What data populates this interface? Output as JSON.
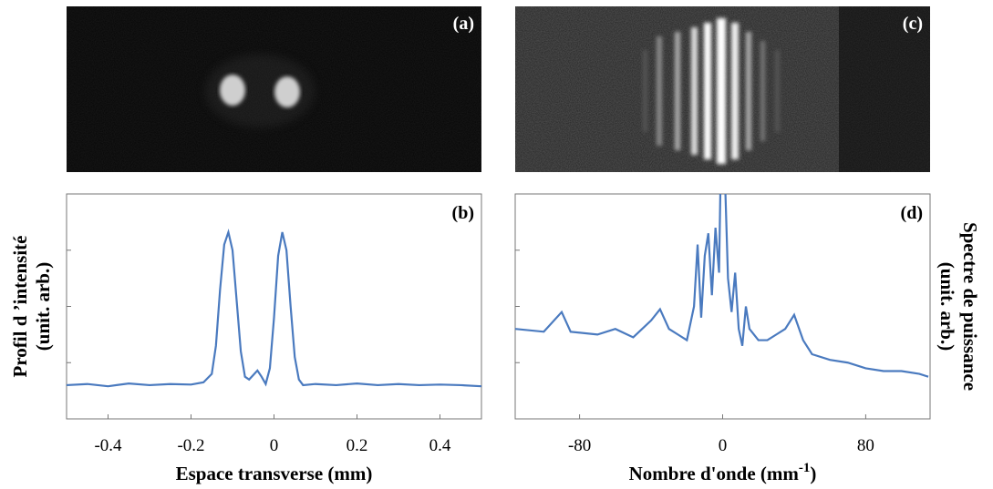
{
  "images": [
    {
      "label": "(a)"
    },
    {
      "label": "(c)"
    }
  ],
  "chart_data": [
    {
      "type": "line",
      "panel_label": "(b)",
      "xlabel": "Espace transverse (mm)",
      "ylabel": [
        "Profil d ’intensité",
        "(unit. arb.)"
      ],
      "ylabel_side": "left",
      "color": "#4a7abf",
      "xlim": [
        -0.5,
        0.5
      ],
      "xticks": [
        -0.4,
        -0.2,
        0,
        0.2,
        0.4
      ],
      "ylim": [
        0,
        4
      ],
      "yticks": [
        0,
        1,
        2,
        3,
        4
      ],
      "x": [
        -0.5,
        -0.45,
        -0.4,
        -0.35,
        -0.3,
        -0.25,
        -0.2,
        -0.17,
        -0.15,
        -0.14,
        -0.13,
        -0.12,
        -0.11,
        -0.1,
        -0.09,
        -0.08,
        -0.07,
        -0.06,
        -0.05,
        -0.04,
        -0.03,
        -0.02,
        -0.01,
        0,
        0.01,
        0.02,
        0.03,
        0.04,
        0.05,
        0.06,
        0.07,
        0.1,
        0.15,
        0.2,
        0.25,
        0.3,
        0.35,
        0.4,
        0.45,
        0.5
      ],
      "values": [
        0.6,
        0.62,
        0.58,
        0.63,
        0.6,
        0.62,
        0.61,
        0.65,
        0.8,
        1.3,
        2.3,
        3.1,
        3.32,
        3.0,
        2.1,
        1.2,
        0.75,
        0.7,
        0.78,
        0.86,
        0.75,
        0.62,
        0.9,
        1.8,
        2.9,
        3.32,
        3.0,
        2.0,
        1.1,
        0.7,
        0.6,
        0.62,
        0.6,
        0.63,
        0.6,
        0.62,
        0.6,
        0.61,
        0.6,
        0.58
      ]
    },
    {
      "type": "line",
      "panel_label": "(d)",
      "xlabel": [
        "Nombre d'onde (mm",
        "-1",
        ")"
      ],
      "ylabel": [
        "Spectre de puissance",
        "(unit. arb.)"
      ],
      "ylabel_side": "right",
      "color": "#4a7abf",
      "xlim": [
        -116,
        116
      ],
      "xticks": [
        -80,
        0,
        80
      ],
      "ylim": [
        0,
        4
      ],
      "yticks": [
        0,
        1,
        2,
        3,
        4
      ],
      "x": [
        -116,
        -100,
        -90,
        -85,
        -70,
        -60,
        -50,
        -40,
        -35,
        -30,
        -25,
        -20,
        -16,
        -14,
        -12,
        -10,
        -8,
        -6,
        -4,
        -2,
        -1,
        1,
        3,
        5,
        7,
        9,
        11,
        13,
        15,
        20,
        25,
        30,
        35,
        40,
        45,
        50,
        60,
        70,
        80,
        90,
        100,
        110,
        115
      ],
      "values": [
        1.6,
        1.55,
        1.9,
        1.55,
        1.5,
        1.6,
        1.45,
        1.75,
        1.95,
        1.6,
        1.5,
        1.4,
        2.0,
        3.1,
        1.8,
        2.9,
        3.3,
        2.2,
        3.4,
        2.6,
        4.6,
        4.6,
        2.5,
        1.9,
        2.6,
        1.6,
        1.3,
        2.0,
        1.6,
        1.4,
        1.4,
        1.5,
        1.6,
        1.85,
        1.4,
        1.15,
        1.05,
        1.0,
        0.9,
        0.85,
        0.85,
        0.8,
        0.75
      ]
    }
  ]
}
